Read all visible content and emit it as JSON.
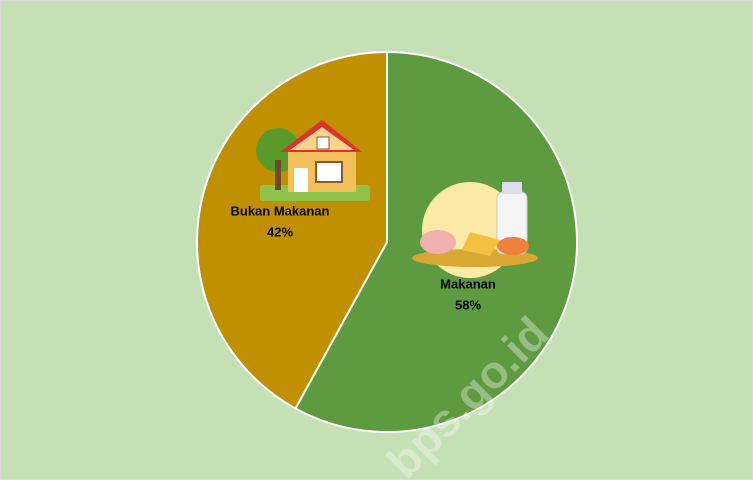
{
  "chart_data": {
    "type": "pie",
    "categories": [
      "Makanan",
      "Bukan Makanan"
    ],
    "values": [
      58,
      42
    ],
    "value_labels": [
      "58%",
      "42%"
    ],
    "colors": [
      "#5e9a40",
      "#c09000"
    ],
    "watermark": "bps.go.id"
  }
}
